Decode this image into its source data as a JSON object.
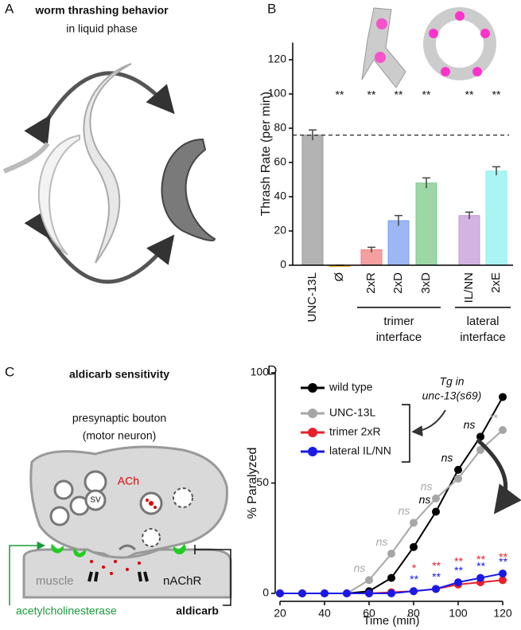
{
  "panels": {
    "A": {
      "letter": "A",
      "title": "worm thrashing behavior",
      "subtitle": "in liquid phase"
    },
    "B": {
      "letter": "B"
    },
    "C": {
      "letter": "C",
      "title": "aldicarb sensitivity",
      "bouton": "presynaptic bouton",
      "neuron": "(motor neuron)",
      "ach": "ACh",
      "sv": "SV",
      "muscle": "muscle",
      "receptor": "nAChR",
      "enzyme": "acetylcholinesterase",
      "drug": "aldicarb"
    },
    "D": {
      "letter": "D"
    }
  },
  "chart_data": [
    {
      "type": "bar",
      "ylabel": "Thrash Rate (per min)",
      "categories": [
        "UNC-13L",
        "Ø",
        "2xR",
        "2xD",
        "3xD",
        "IL/NN",
        "2xE"
      ],
      "values": [
        76,
        0,
        9,
        26,
        48,
        29,
        55
      ],
      "errors": [
        3,
        0,
        1.5,
        3,
        3,
        2,
        2.5
      ],
      "significance": [
        null,
        "**",
        "**",
        "**",
        "**",
        "**",
        "**"
      ],
      "colors": [
        "#9a9a9a",
        "#f5a623",
        "#f08080",
        "#7b9ff0",
        "#7cc98a",
        "#c49ad8",
        "#8ff0f0"
      ],
      "groups": [
        {
          "lines": [
            "trimer",
            "interface"
          ],
          "from": 2,
          "to": 4
        },
        {
          "lines": [
            "lateral",
            "interface"
          ],
          "from": 5,
          "to": 6
        }
      ],
      "ylim": [
        0,
        130
      ],
      "yticks": [
        0,
        20,
        40,
        60,
        80,
        100,
        120
      ]
    },
    {
      "type": "line",
      "xlabel": "Time (min)",
      "ylabel": "% Paralyzed",
      "x": [
        20,
        30,
        40,
        50,
        60,
        70,
        80,
        90,
        100,
        110,
        120
      ],
      "series": [
        {
          "name": "wild type",
          "color": "#000000",
          "values": [
            0,
            0,
            0,
            0,
            1,
            7,
            21,
            37,
            56,
            71,
            89
          ],
          "labels": [
            null,
            null,
            null,
            null,
            null,
            null,
            null,
            "ns",
            "ns",
            "ns",
            null
          ]
        },
        {
          "name": "UNC-13L",
          "color": "#a6a6a6",
          "values": [
            0,
            0,
            0,
            0,
            6,
            18,
            32,
            43,
            52,
            65,
            74
          ],
          "labels": [
            null,
            null,
            null,
            null,
            "ns",
            "ns",
            "ns",
            "ns",
            null,
            null,
            "**"
          ]
        },
        {
          "name": "trimer 2xR",
          "color": "#e8202a",
          "values": [
            0,
            0,
            0,
            0,
            0,
            0.5,
            1,
            2,
            4,
            5,
            6
          ],
          "labels": [
            null,
            null,
            null,
            null,
            null,
            null,
            "*",
            "**",
            "**",
            "**",
            "**"
          ]
        },
        {
          "name": "lateral IL/NN",
          "color": "#1a1ae6",
          "values": [
            0,
            0,
            0,
            0,
            0,
            0,
            1,
            2,
            5,
            7,
            9
          ],
          "labels": [
            null,
            null,
            null,
            null,
            null,
            null,
            "**",
            "**",
            "**",
            "**",
            "**"
          ]
        }
      ],
      "annotation": [
        "Tg in",
        "unc-13(s69)"
      ],
      "xlim": [
        20,
        120
      ],
      "xticks": [
        20,
        40,
        60,
        80,
        100,
        120
      ],
      "ylim": [
        0,
        100
      ],
      "yticks": [
        0,
        50,
        100
      ]
    }
  ]
}
